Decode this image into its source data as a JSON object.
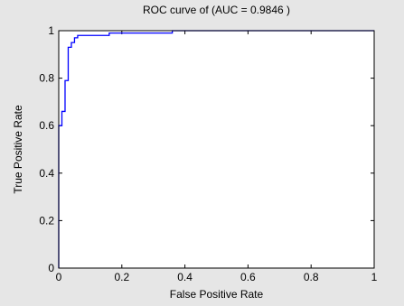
{
  "figure": {
    "background": "#e6e6e6",
    "axes_background": "#ffffff",
    "frame_color": "#000000",
    "line_color": "#0000ff"
  },
  "chart_data": {
    "type": "line",
    "title": "ROC curve of (AUC = 0.9846 )",
    "xlabel": "False Positive Rate",
    "ylabel": "True Positive Rate",
    "xlim": [
      0,
      1
    ],
    "ylim": [
      0,
      1
    ],
    "grid": false,
    "legend": "none",
    "x_ticks": [
      0,
      0.2,
      0.4,
      0.6,
      0.8,
      1
    ],
    "x_tick_labels": [
      "0",
      "0.2",
      "0.4",
      "0.6",
      "0.8",
      "1"
    ],
    "y_ticks": [
      0,
      0.2,
      0.4,
      0.6,
      0.8,
      1
    ],
    "y_tick_labels": [
      "0",
      "0.2",
      "0.4",
      "0.6",
      "0.8",
      "1"
    ],
    "series": [
      {
        "x": [
          0,
          0,
          0.01,
          0.01,
          0.02,
          0.02,
          0.03,
          0.03,
          0.04,
          0.04,
          0.05,
          0.05,
          0.06,
          0.06,
          0.16,
          0.16,
          0.36,
          0.36,
          1
        ],
        "y": [
          0,
          0.6,
          0.6,
          0.66,
          0.66,
          0.79,
          0.79,
          0.93,
          0.93,
          0.95,
          0.95,
          0.97,
          0.97,
          0.98,
          0.98,
          0.99,
          0.99,
          1.0,
          1.0
        ]
      }
    ]
  }
}
